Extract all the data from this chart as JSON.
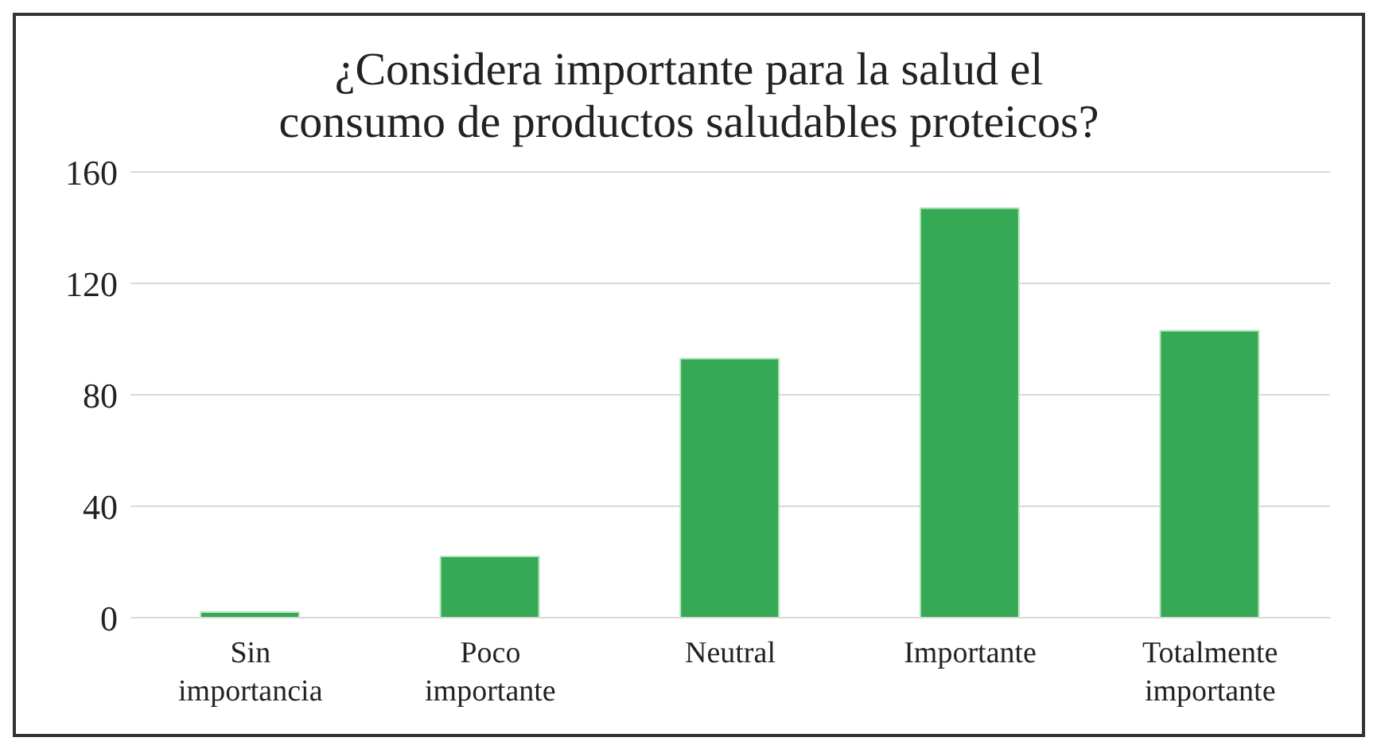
{
  "chart_data": {
    "type": "bar",
    "title": "¿Considera importante para la salud el consumo de productos saludables proteicos?",
    "categories": [
      "Sin importancia",
      "Poco importante",
      "Neutral",
      "Importante",
      "Totalmente importante"
    ],
    "values": [
      2,
      22,
      93,
      147,
      103
    ],
    "color": "#36a954",
    "ylim": [
      0,
      160
    ],
    "yticks": [
      0,
      40,
      80,
      120,
      160
    ],
    "grid": "y"
  }
}
